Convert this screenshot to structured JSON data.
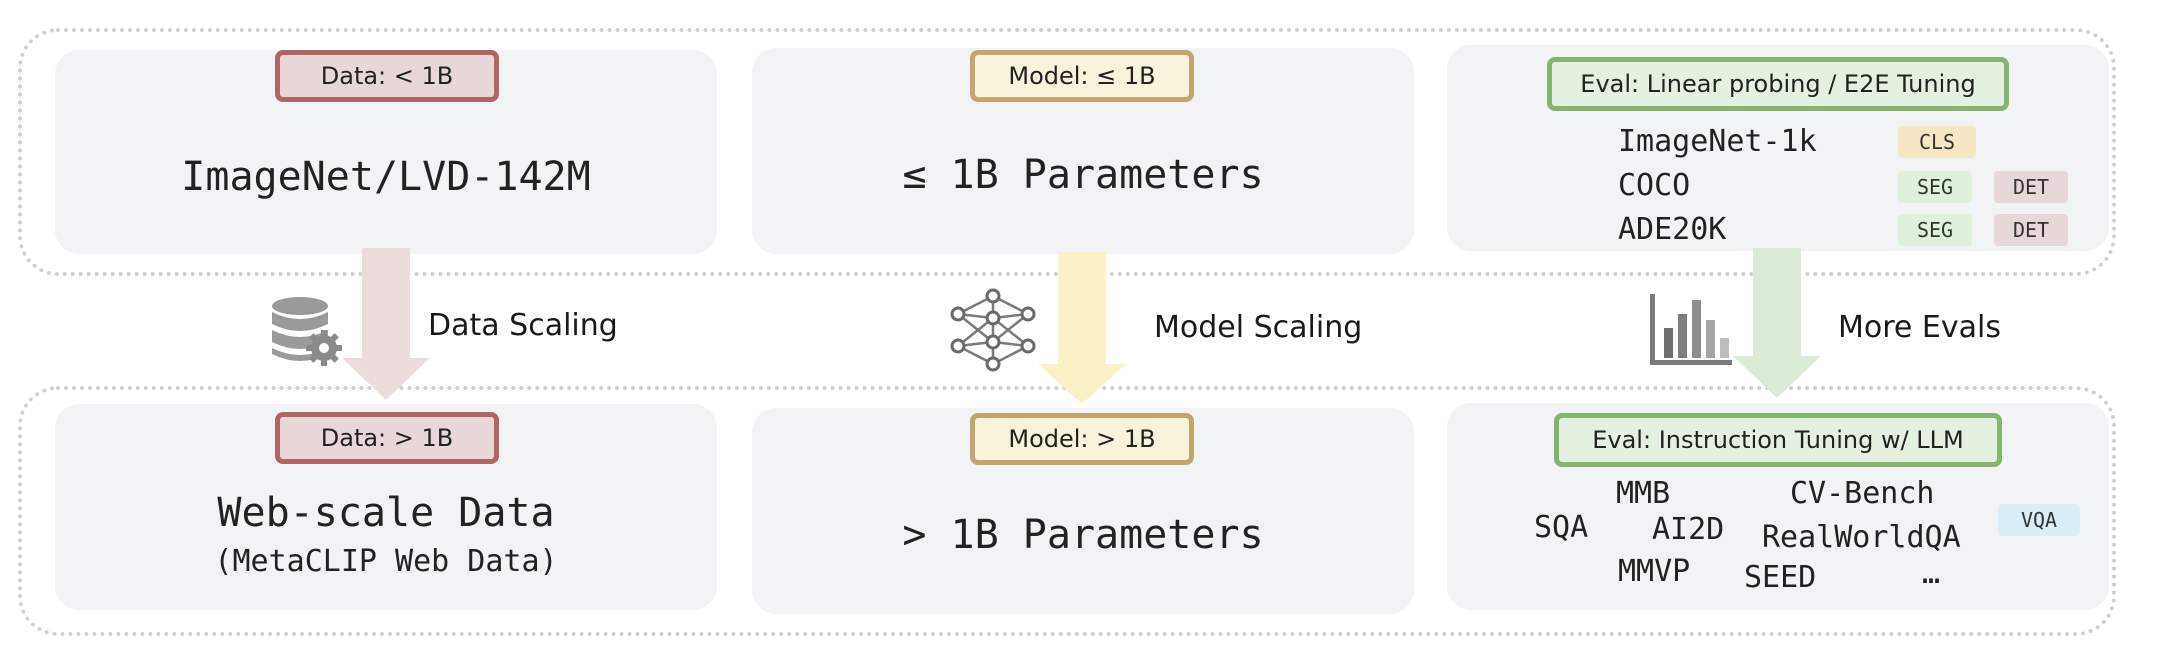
{
  "top": {
    "data_tag": "Data: < 1B",
    "data_text": "ImageNet/LVD-142M",
    "model_tag": "Model: ≤ 1B",
    "model_text": "≤ 1B Parameters",
    "eval_tag": "Eval: Linear probing / E2E Tuning",
    "eval_rows": [
      {
        "name": "ImageNet-1k",
        "chips": [
          "CLS"
        ]
      },
      {
        "name": "COCO",
        "chips": [
          "SEG",
          "DET"
        ]
      },
      {
        "name": "ADE20K",
        "chips": [
          "SEG",
          "DET"
        ]
      }
    ]
  },
  "middle": {
    "data_label": "Data Scaling",
    "model_label": "Model Scaling",
    "eval_label": "More Evals",
    "data_icon": "database-gear-icon",
    "model_icon": "neural-network-icon",
    "eval_icon": "bar-chart-icon"
  },
  "bottom": {
    "data_tag": "Data: > 1B",
    "data_text": "Web-scale Data",
    "data_subtext": "(MetaCLIP Web Data)",
    "model_tag": "Model: > 1B",
    "model_text": "> 1B Parameters",
    "eval_tag": "Eval: Instruction Tuning w/ LLM",
    "benchmarks": {
      "sqa": "SQA",
      "mmb": "MMB",
      "ai2d": "AI2D",
      "mmvp": "MMVP",
      "cvbench": "CV-Bench",
      "realworldqa": "RealWorldQA",
      "seed": "SEED",
      "ellipsis": "…"
    },
    "vqa_chip": "VQA"
  },
  "colors": {
    "data_accent": "#b06565",
    "model_accent": "#c2a56e",
    "eval_accent": "#86b36f",
    "data_arrow": "#eddcdc",
    "model_arrow": "#fbf1c7",
    "eval_arrow": "#dcebd6"
  }
}
